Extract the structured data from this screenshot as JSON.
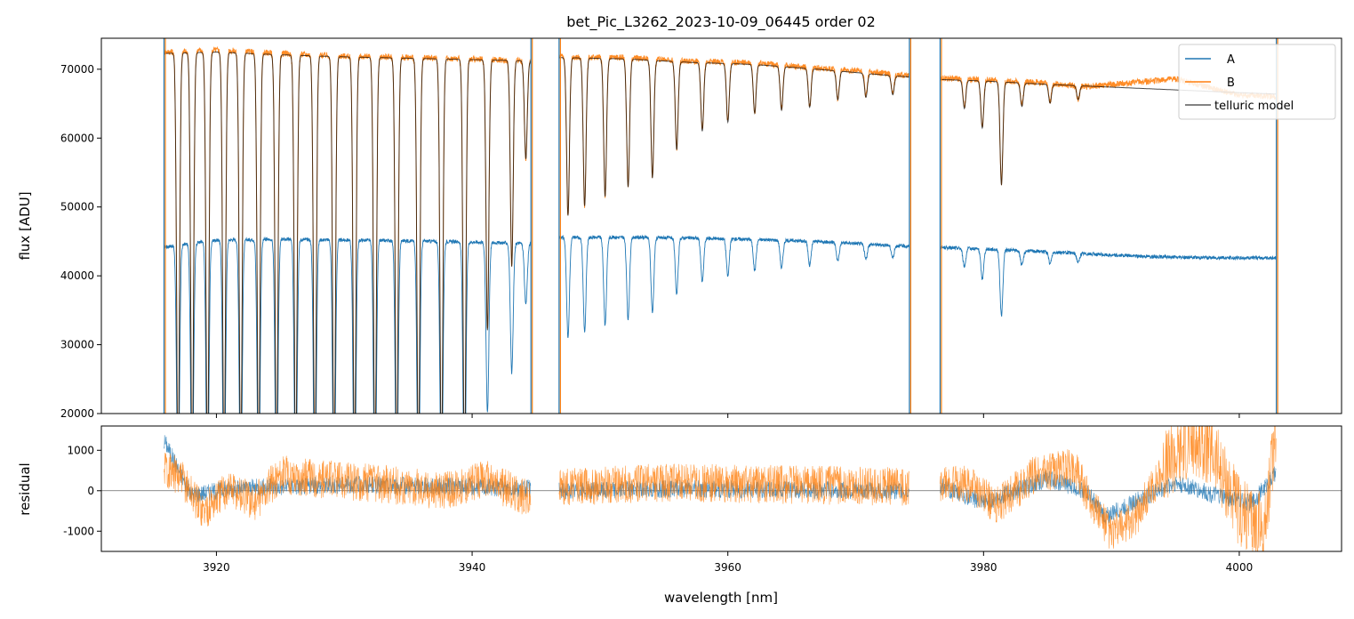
{
  "chart_data": [
    {
      "type": "line",
      "title": "bet_Pic_L3262_2023-10-09_06445  order 02",
      "ylabel": "flux [ADU]",
      "xlim": [
        3911.0,
        4008.0
      ],
      "ylim": [
        20000,
        74500
      ],
      "yticks": [
        20000,
        30000,
        40000,
        50000,
        60000,
        70000
      ],
      "grid": false,
      "legend": "top-right",
      "segments": [
        [
          3915.9,
          3944.6
        ],
        [
          3946.8,
          3974.2
        ],
        [
          3976.6,
          4002.9
        ]
      ],
      "series": [
        {
          "name": "A",
          "color": "#1f77b4",
          "x": [
            3916.0,
            3920.0,
            3925.0,
            3930.0,
            3935.0,
            3940.0,
            3944.5,
            3947.0,
            3952.0,
            3957.0,
            3962.0,
            3967.0,
            3972.0,
            3974.0,
            3976.7,
            3980.0,
            3985.0,
            3990.0,
            3995.0,
            4000.0,
            4002.8
          ],
          "y": [
            44200,
            45200,
            45300,
            45200,
            45100,
            44900,
            44700,
            45600,
            45600,
            45500,
            45300,
            45000,
            44500,
            44300,
            44100,
            43900,
            43500,
            43000,
            42700,
            42600,
            42600
          ]
        },
        {
          "name": "B",
          "color": "#ff7f0e",
          "x": [
            3916.0,
            3920.0,
            3925.0,
            3930.0,
            3935.0,
            3940.0,
            3944.5,
            3947.0,
            3952.0,
            3957.0,
            3962.0,
            3967.0,
            3972.0,
            3974.0,
            3976.7,
            3980.0,
            3985.0,
            3988.0,
            3990.0,
            3995.0,
            4000.0,
            4002.8
          ],
          "y": [
            72500,
            72800,
            72300,
            71900,
            71700,
            71500,
            71200,
            71800,
            71700,
            71200,
            70900,
            70200,
            69500,
            69100,
            68700,
            68500,
            68000,
            67500,
            67800,
            68600,
            66200,
            66000
          ]
        },
        {
          "name": "telluric model",
          "color": "#000000",
          "x": [
            3916.0,
            3920.0,
            3925.0,
            3930.0,
            3935.0,
            3940.0,
            3944.5,
            3947.0,
            3952.0,
            3957.0,
            3962.0,
            3967.0,
            3972.0,
            3974.0,
            3976.7,
            3980.0,
            3985.0,
            3990.0,
            3995.0,
            4000.0,
            4002.8
          ],
          "y": [
            72300,
            72500,
            72100,
            71800,
            71600,
            71400,
            71200,
            71700,
            71500,
            71000,
            70700,
            70000,
            69200,
            68900,
            68500,
            68300,
            67800,
            67400,
            67000,
            66600,
            66400
          ]
        }
      ],
      "lines_x": [
        3917.0,
        3918.1,
        3919.3,
        3920.6,
        3921.9,
        3923.3,
        3924.7,
        3926.2,
        3927.7,
        3929.2,
        3930.8,
        3932.4,
        3934.1,
        3935.8,
        3937.6,
        3939.4,
        3941.2,
        3943.1,
        3944.2,
        3947.5,
        3948.8,
        3950.4,
        3952.2,
        3954.1,
        3956.0,
        3958.0,
        3960.0,
        3962.1,
        3964.2,
        3966.4,
        3968.6,
        3970.8,
        3972.9,
        3978.5,
        3979.9,
        3981.4,
        3983.0,
        3985.2,
        3987.4
      ],
      "lines_depth": [
        0.85,
        0.85,
        0.85,
        0.85,
        0.85,
        0.85,
        0.85,
        0.85,
        0.85,
        0.85,
        0.85,
        0.85,
        0.85,
        0.85,
        0.85,
        0.85,
        0.55,
        0.42,
        0.2,
        0.32,
        0.3,
        0.28,
        0.26,
        0.24,
        0.18,
        0.14,
        0.12,
        0.1,
        0.09,
        0.08,
        0.06,
        0.05,
        0.04,
        0.06,
        0.1,
        0.22,
        0.05,
        0.04,
        0.03
      ]
    },
    {
      "type": "line",
      "ylabel": "residual",
      "xlabel": "wavelength [nm]",
      "xlim": [
        3911.0,
        4008.0
      ],
      "ylim": [
        -1500,
        1600
      ],
      "yticks": [
        -1000,
        0,
        1000
      ],
      "xticks": [
        3920,
        3940,
        3960,
        3980,
        4000
      ],
      "grid": false,
      "zero_line": 0,
      "series": [
        {
          "name": "A",
          "color": "#1f77b4",
          "x": [
            3916.0,
            3918.0,
            3921.0,
            3925.0,
            3930.0,
            3935.0,
            3940.0,
            3944.5,
            3947.0,
            3955.0,
            3965.0,
            3974.0,
            3976.7,
            3980.0,
            3985.0,
            3988.0,
            3989.5,
            3991.0,
            3993.0,
            3995.0,
            3998.0,
            4001.0,
            4002.8
          ],
          "y": [
            1200,
            -100,
            50,
            100,
            150,
            120,
            100,
            50,
            0,
            50,
            20,
            0,
            100,
            -300,
            300,
            0,
            -650,
            -400,
            -100,
            200,
            -100,
            -300,
            400
          ]
        },
        {
          "name": "B",
          "color": "#ff7f0e",
          "x": [
            3916.0,
            3917.5,
            3919.0,
            3921.0,
            3923.0,
            3925.0,
            3928.0,
            3932.0,
            3935.0,
            3938.0,
            3941.0,
            3944.5,
            3947.0,
            3955.0,
            3965.0,
            3974.0,
            3976.7,
            3979.0,
            3981.0,
            3984.0,
            3987.0,
            3988.5,
            3990.0,
            3992.0,
            3994.0,
            3996.0,
            3998.0,
            4000.0,
            4002.0,
            4002.8
          ],
          "y": [
            600,
            200,
            -500,
            100,
            -300,
            400,
            300,
            200,
            100,
            0,
            300,
            -200,
            100,
            200,
            150,
            100,
            100,
            200,
            -400,
            400,
            600,
            -300,
            -1100,
            -600,
            500,
            1200,
            900,
            -500,
            -1000,
            1400
          ]
        }
      ]
    }
  ]
}
